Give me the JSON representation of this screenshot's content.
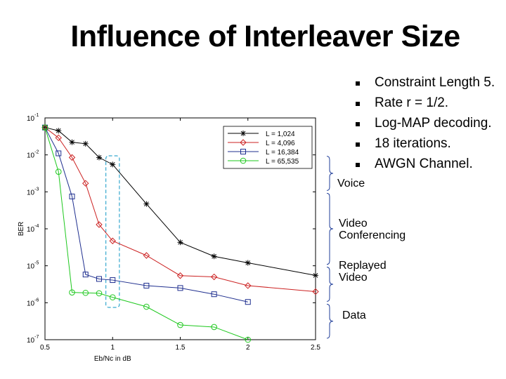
{
  "slide": {
    "title": "Influence of Interleaver Size",
    "bullets": [
      "Constraint Length 5.",
      "Rate r = 1/2.",
      "Log-MAP decoding.",
      "18 iterations.",
      "AWGN Channel."
    ],
    "applications": [
      {
        "label": "Voice",
        "ber_range": [
          0.001,
          0.01
        ]
      },
      {
        "label": "Video Conferencing",
        "ber_range": [
          1e-05,
          0.001
        ]
      },
      {
        "label": "Replayed Video",
        "ber_range": [
          1e-06,
          1e-05
        ]
      },
      {
        "label": "Data",
        "ber_range": [
          1e-07,
          1e-06
        ]
      }
    ],
    "accent_colors": {
      "bracket": "#1f3d99",
      "highlight_box": "#37a9cf"
    }
  },
  "chart_data": {
    "type": "line",
    "title": "",
    "xlabel": "Eb/Nc in dB",
    "ylabel": "BER",
    "xlim": [
      0.5,
      2.5
    ],
    "ylim": [
      1e-07,
      0.1
    ],
    "y_scale": "log",
    "x_ticks": [
      "0.5",
      "1",
      "1.5",
      "2",
      "2.5"
    ],
    "y_ticks": [
      "10-1",
      "10-2",
      "10-3",
      "10-4",
      "10-5",
      "10-6",
      "10-7"
    ],
    "highlight_x_range": [
      0.95,
      1.05
    ],
    "legend_position": "top-right",
    "series": [
      {
        "name": "L = 1,024",
        "color": "#000000",
        "marker": "star",
        "x": [
          0.5,
          0.6,
          0.7,
          0.8,
          0.9,
          1.0,
          1.25,
          1.5,
          1.75,
          2.0,
          2.5
        ],
        "y": [
          0.055,
          0.045,
          0.022,
          0.02,
          0.0085,
          0.0055,
          0.00047,
          4.3e-05,
          1.8e-05,
          1.2e-05,
          5.5e-06
        ]
      },
      {
        "name": "L = 4,096",
        "color": "#cc2222",
        "marker": "diamond",
        "x": [
          0.5,
          0.6,
          0.7,
          0.8,
          0.9,
          1.0,
          1.25,
          1.5,
          1.75,
          2.0,
          2.5
        ],
        "y": [
          0.055,
          0.029,
          0.0085,
          0.0017,
          0.00013,
          4.7e-05,
          1.9e-05,
          5.4e-06,
          5e-06,
          2.9e-06,
          2e-06
        ]
      },
      {
        "name": "L = 16,384",
        "color": "#1f2f8f",
        "marker": "square",
        "x": [
          0.5,
          0.6,
          0.7,
          0.8,
          0.9,
          1.0,
          1.25,
          1.5,
          1.75,
          2.0
        ],
        "y": [
          0.055,
          0.011,
          0.00075,
          5.8e-06,
          4.4e-06,
          4.1e-06,
          2.9e-06,
          2.5e-06,
          1.7e-06,
          1.05e-06
        ]
      },
      {
        "name": "L = 65,535",
        "color": "#1ec81e",
        "marker": "circle",
        "x": [
          0.5,
          0.6,
          0.7,
          0.8,
          0.9,
          1.0,
          1.25,
          1.5,
          1.75,
          2.0
        ],
        "y": [
          0.055,
          0.0035,
          1.9e-06,
          1.85e-06,
          1.8e-06,
          1.4e-06,
          7.8e-07,
          2.5e-07,
          2.2e-07,
          1e-07
        ]
      }
    ]
  }
}
